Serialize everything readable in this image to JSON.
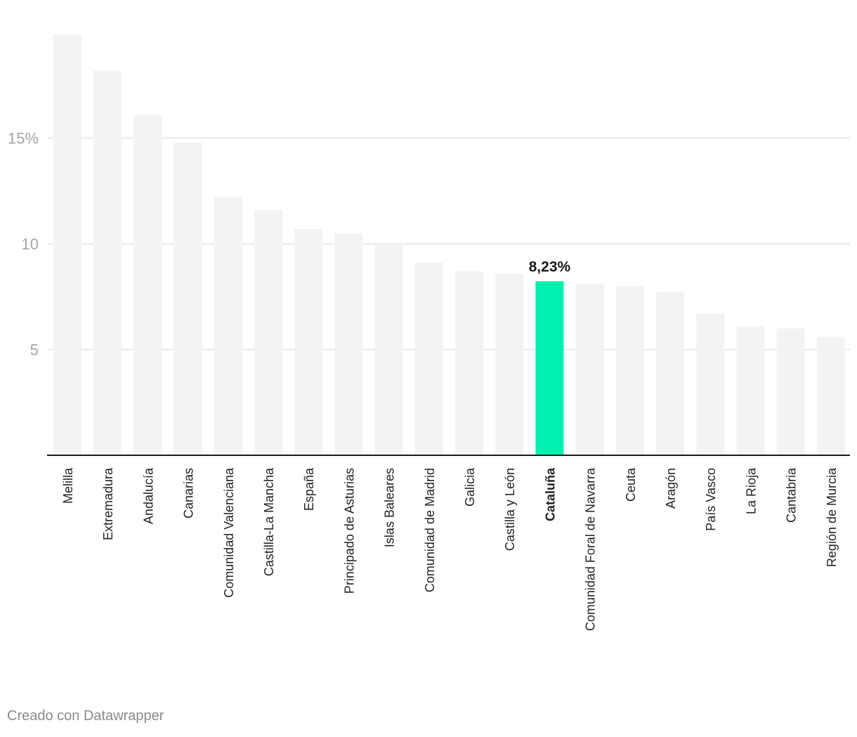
{
  "chart_data": {
    "type": "bar",
    "title": "",
    "xlabel": "",
    "ylabel": "",
    "ylim": [
      0,
      20
    ],
    "y_ticks": [
      5,
      10,
      15
    ],
    "y_tick_labels": [
      "5",
      "10",
      "15%"
    ],
    "grid": true,
    "categories": [
      "Melilla",
      "Extremadura",
      "Andalucía",
      "Canarias",
      "Comunidad Valenciana",
      "Castilla-La Mancha",
      "España",
      "Principado de Asturias",
      "Islas Baleares",
      "Comunidad de Madrid",
      "Galicia",
      "Castilla y León",
      "Cataluña",
      "Comunidad Foral de Navarra",
      "Ceuta",
      "Aragón",
      "País Vasco",
      "La Rioja",
      "Cantabria",
      "Región de Murcia"
    ],
    "values": [
      19.9,
      18.2,
      16.1,
      14.8,
      12.2,
      11.6,
      10.7,
      10.5,
      10.0,
      9.1,
      8.7,
      8.6,
      8.23,
      8.1,
      8.0,
      7.7,
      6.7,
      6.1,
      6.0,
      5.6
    ],
    "highlight": {
      "category": "Cataluña",
      "label": "8,23%",
      "color": "#00f0b0"
    },
    "colors": {
      "bar": "#f3f3f3",
      "grid": "#e2e2e2",
      "axis": "#1a1a1a",
      "tick_label": "#a6a6a6",
      "category_label": "#222222"
    }
  },
  "footer": {
    "credit": "Creado con Datawrapper"
  }
}
